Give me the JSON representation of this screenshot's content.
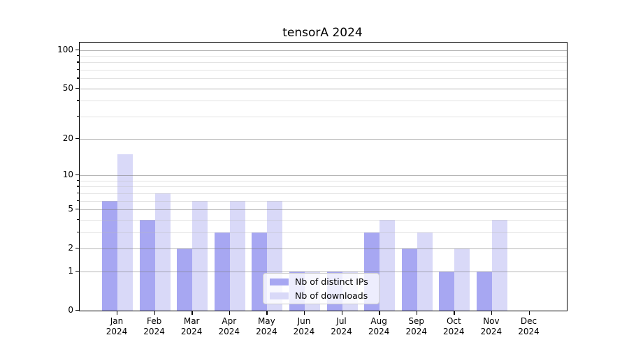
{
  "chart_data": {
    "type": "bar",
    "title": "tensorA 2024",
    "categories": [
      "Jan",
      "Feb",
      "Mar",
      "Apr",
      "May",
      "Jun",
      "Jul",
      "Aug",
      "Sep",
      "Oct",
      "Nov",
      "Dec"
    ],
    "category_year": "2024",
    "series": [
      {
        "name": "Nb of distinct IPs",
        "color": "#a7a7f2",
        "values": [
          6,
          4,
          2,
          3,
          3,
          1,
          1,
          3,
          2,
          1,
          1,
          0
        ]
      },
      {
        "name": "Nb of downloads",
        "color": "#d9d9f8",
        "values": [
          15,
          7,
          6,
          6,
          6,
          1,
          1,
          4,
          3,
          2,
          4,
          0
        ]
      }
    ],
    "xlabel": "",
    "ylabel": "",
    "y_axis": {
      "scale": "log1p",
      "ylim": [
        0,
        114
      ],
      "ticks": [
        0,
        1,
        2,
        5,
        10,
        20,
        50,
        100
      ],
      "minor_gridlines": [
        3,
        4,
        6,
        7,
        8,
        9,
        30,
        40,
        60,
        70,
        80,
        90
      ]
    },
    "grid": {
      "major": true,
      "minor": true
    },
    "legend": {
      "position": "lower center",
      "entries": [
        "Nb of distinct IPs",
        "Nb of downloads"
      ]
    }
  },
  "colors": {
    "bar_dark": "#a7a7f2",
    "bar_light": "#d9d9f8",
    "grid_major": "#787878",
    "grid_minor": "#b9b9b9",
    "spine": "#000000",
    "text": "#000000",
    "background": "#ffffff",
    "legend_border": "#cccccc"
  }
}
